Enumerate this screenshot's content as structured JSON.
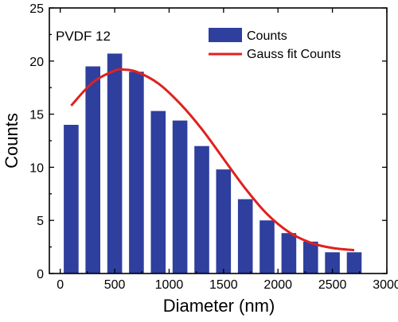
{
  "chart_data": {
    "type": "bar",
    "annotation": "PVDF 12",
    "xlabel": "Diameter (nm)",
    "ylabel": "Counts",
    "xlim": [
      -100,
      3000
    ],
    "ylim": [
      0,
      25
    ],
    "x_ticks": [
      0,
      500,
      1000,
      1500,
      2000,
      2500,
      3000
    ],
    "y_ticks": [
      0,
      5,
      10,
      15,
      20,
      25
    ],
    "bin_width": 200,
    "grid": false,
    "legend_position": "top-right",
    "series": [
      {
        "name": "Counts",
        "kind": "bar",
        "color": "#2e3f9e",
        "x": [
          100,
          300,
          500,
          700,
          900,
          1100,
          1300,
          1500,
          1700,
          1900,
          2100,
          2300,
          2500,
          2700
        ],
        "values": [
          14,
          19.5,
          20.7,
          19,
          15.3,
          14.4,
          12,
          9.8,
          7,
          5,
          3.8,
          3,
          2,
          2
        ]
      },
      {
        "name": "Gauss fit Counts",
        "kind": "line",
        "color": "#e0211d",
        "x": [
          100,
          300,
          500,
          580,
          700,
          900,
          1100,
          1300,
          1500,
          1700,
          1900,
          2100,
          2300,
          2500,
          2700
        ],
        "values": [
          15.8,
          18.0,
          19.1,
          19.2,
          19.0,
          17.9,
          16.0,
          13.6,
          10.8,
          8.0,
          5.6,
          3.9,
          2.9,
          2.4,
          2.2
        ]
      }
    ]
  }
}
